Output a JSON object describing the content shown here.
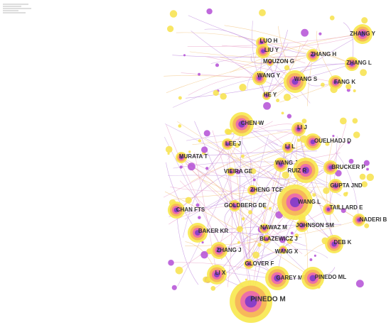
{
  "nodes": [
    {
      "label": "ZHANG Y"
    },
    {
      "label": "LUO H"
    },
    {
      "label": "LIU Y"
    },
    {
      "label": "ZHANG H"
    },
    {
      "label": "MOUZON G"
    },
    {
      "label": "ZHANG L"
    },
    {
      "label": "WANG Y"
    },
    {
      "label": "WANG S"
    },
    {
      "label": "FANG K"
    },
    {
      "label": "HE Y"
    },
    {
      "label": "CHEN W"
    },
    {
      "label": "LI J"
    },
    {
      "label": "OUELHADJ D"
    },
    {
      "label": "LEE J"
    },
    {
      "label": "LI L"
    },
    {
      "label": "MURATA T"
    },
    {
      "label": "WANG J"
    },
    {
      "label": "VIEIRA GE"
    },
    {
      "label": "RUIZ R"
    },
    {
      "label": "BRUCKER P"
    },
    {
      "label": "ZHENG TCE"
    },
    {
      "label": "GUPTA JND"
    },
    {
      "label": "WANG L"
    },
    {
      "label": "GOLDBERG DE"
    },
    {
      "label": "CHAN FTS"
    },
    {
      "label": "TAILLARD E"
    },
    {
      "label": "NADERI B"
    },
    {
      "label": "BAKER KR"
    },
    {
      "label": "NAWAZ M"
    },
    {
      "label": "JOHNSON SM"
    },
    {
      "label": "BLAZEWICZ J"
    },
    {
      "label": "DEB K"
    },
    {
      "label": "ZHANG J"
    },
    {
      "label": "WANG X"
    },
    {
      "label": "GLOVER F"
    },
    {
      "label": "LI X"
    },
    {
      "label": "GAREY MR"
    },
    {
      "label": "PINEDO ML"
    },
    {
      "label": "PINEDO M"
    }
  ]
}
